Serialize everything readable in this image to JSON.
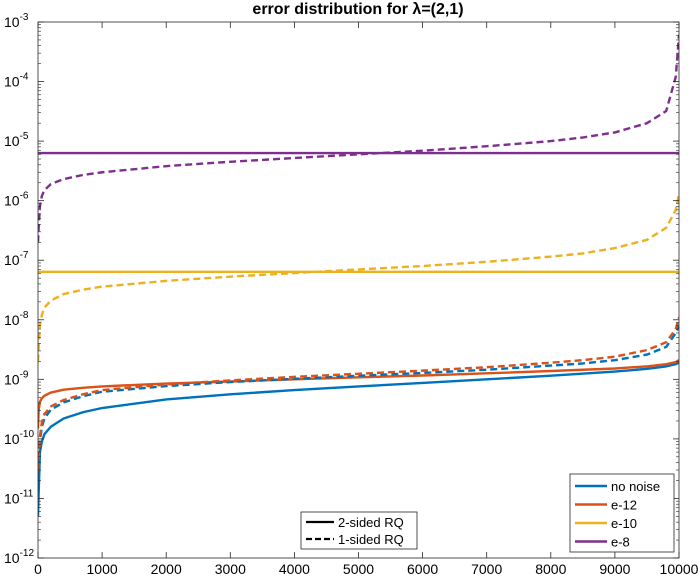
{
  "chart_data": {
    "type": "line",
    "title": "error distribution for λ=(2,1)",
    "xlabel": "",
    "ylabel": "",
    "xlim": [
      0,
      10000
    ],
    "ylim": [
      1e-12,
      0.001
    ],
    "yscale": "log",
    "grid": false,
    "x_ticks": [
      0,
      1000,
      2000,
      3000,
      4000,
      5000,
      6000,
      7000,
      8000,
      9000,
      10000
    ],
    "x_tick_labels": [
      "0",
      "1000",
      "2000",
      "3000",
      "4000",
      "5000",
      "6000",
      "7000",
      "8000",
      "9000",
      "10000"
    ],
    "y_tick_exponents": [
      -12,
      -11,
      -10,
      -9,
      -8,
      -7,
      -6,
      -5,
      -4,
      -3
    ],
    "series": [
      {
        "name": "no noise",
        "style": "solid",
        "color": "#0072BD",
        "x": [
          0,
          10,
          30,
          60,
          100,
          200,
          400,
          700,
          1000,
          2000,
          3000,
          4000,
          5000,
          6000,
          7000,
          8000,
          9000,
          9500,
          9800,
          9950,
          10000
        ],
        "y": [
          5e-12,
          1.2e-11,
          6e-11,
          9e-11,
          1.2e-10,
          1.6e-10,
          2.2e-10,
          2.8e-10,
          3.3e-10,
          4.6e-10,
          5.6e-10,
          6.6e-10,
          7.6e-10,
          8.7e-10,
          1e-09,
          1.15e-09,
          1.35e-09,
          1.5e-09,
          1.65e-09,
          1.8e-09,
          1.9e-09
        ]
      },
      {
        "name": "e-12",
        "style": "solid",
        "color": "#D95319",
        "x": [
          0,
          10,
          30,
          60,
          100,
          200,
          400,
          700,
          1000,
          2000,
          3000,
          4000,
          5000,
          6000,
          7000,
          8000,
          9000,
          9500,
          9800,
          9950,
          10000
        ],
        "y": [
          1.5e-10,
          3e-10,
          4.2e-10,
          4.8e-10,
          5.3e-10,
          6e-10,
          6.7e-10,
          7.2e-10,
          7.6e-10,
          8.5e-10,
          9.2e-10,
          1e-09,
          1.08e-09,
          1.16e-09,
          1.26e-09,
          1.38e-09,
          1.52e-09,
          1.65e-09,
          1.8e-09,
          1.95e-09,
          2.1e-09
        ]
      },
      {
        "name": "e-10",
        "style": "solid",
        "color": "#EDB120",
        "x": [
          0,
          10000
        ],
        "y": [
          6.4e-08,
          6.4e-08
        ]
      },
      {
        "name": "e-8",
        "style": "solid",
        "color": "#7E2F8E",
        "x": [
          0,
          10000
        ],
        "y": [
          6.3e-06,
          6.3e-06
        ]
      },
      {
        "name": "no noise",
        "style": "dashed",
        "color": "#0072BD",
        "x": [
          0,
          10,
          30,
          60,
          100,
          200,
          400,
          700,
          1000,
          2000,
          3000,
          4000,
          5000,
          6000,
          7000,
          8000,
          8500,
          9000,
          9500,
          9800,
          9950,
          10000
        ],
        "y": [
          2e-11,
          3e-11,
          9e-11,
          1.6e-10,
          2.2e-10,
          3.1e-10,
          4.1e-10,
          5.2e-10,
          6.2e-10,
          7.7e-10,
          9e-10,
          1.02e-09,
          1.15e-09,
          1.28e-09,
          1.45e-09,
          1.7e-09,
          1.85e-09,
          2.1e-09,
          2.6e-09,
          3.5e-09,
          6e-09,
          8e-09
        ]
      },
      {
        "name": "e-12",
        "style": "dashed",
        "color": "#D95319",
        "x": [
          0,
          10,
          30,
          60,
          100,
          200,
          400,
          700,
          1000,
          2000,
          3000,
          4000,
          5000,
          6000,
          7000,
          8000,
          8500,
          9000,
          9500,
          9800,
          9950,
          10000
        ],
        "y": [
          3e-11,
          4.5e-11,
          1.1e-10,
          1.9e-10,
          2.6e-10,
          3.5e-10,
          4.5e-10,
          5.6e-10,
          6.6e-10,
          8.2e-10,
          9.6e-10,
          1.1e-09,
          1.24e-09,
          1.4e-09,
          1.6e-09,
          1.9e-09,
          2.1e-09,
          2.4e-09,
          3.1e-09,
          4.2e-09,
          7e-09,
          1.1e-08
        ]
      },
      {
        "name": "e-10",
        "style": "dashed",
        "color": "#EDB120",
        "x": [
          0,
          10,
          30,
          60,
          100,
          200,
          400,
          700,
          1000,
          2000,
          3000,
          4000,
          5000,
          6000,
          7000,
          8000,
          8500,
          9000,
          9500,
          9800,
          9950,
          10000
        ],
        "y": [
          2e-09,
          3.5e-09,
          8e-09,
          1.2e-08,
          1.6e-08,
          2.1e-08,
          2.7e-08,
          3.2e-08,
          3.6e-08,
          4.5e-08,
          5.3e-08,
          6.1e-08,
          7e-08,
          8e-08,
          9.4e-08,
          1.15e-07,
          1.3e-07,
          1.6e-07,
          2.2e-07,
          3.5e-07,
          7e-07,
          1.3e-06
        ]
      },
      {
        "name": "e-8",
        "style": "dashed",
        "color": "#7E2F8E",
        "x": [
          0,
          10,
          30,
          60,
          100,
          200,
          400,
          700,
          1000,
          2000,
          3000,
          4000,
          5000,
          6000,
          7000,
          8000,
          8500,
          9000,
          9500,
          9800,
          9950,
          10000
        ],
        "y": [
          2e-07,
          3.5e-07,
          8e-07,
          1.2e-06,
          1.5e-06,
          1.9e-06,
          2.3e-06,
          2.7e-06,
          3e-06,
          3.8e-06,
          4.5e-06,
          5.2e-06,
          6e-06,
          6.9e-06,
          8.2e-06,
          1e-05,
          1.15e-05,
          1.4e-05,
          2e-05,
          3.2e-05,
          0.00012,
          0.0006
        ]
      }
    ],
    "legend_color": {
      "position": "bottom-right",
      "entries": [
        {
          "label": "no noise",
          "color": "#0072BD"
        },
        {
          "label": "e-12",
          "color": "#D95319"
        },
        {
          "label": "e-10",
          "color": "#EDB120"
        },
        {
          "label": "e-8",
          "color": "#7E2F8E"
        }
      ]
    },
    "legend_style": {
      "position": "bottom-center",
      "entries": [
        {
          "label": "2-sided RQ",
          "style": "solid"
        },
        {
          "label": "1-sided RQ",
          "style": "dashed"
        }
      ]
    }
  }
}
